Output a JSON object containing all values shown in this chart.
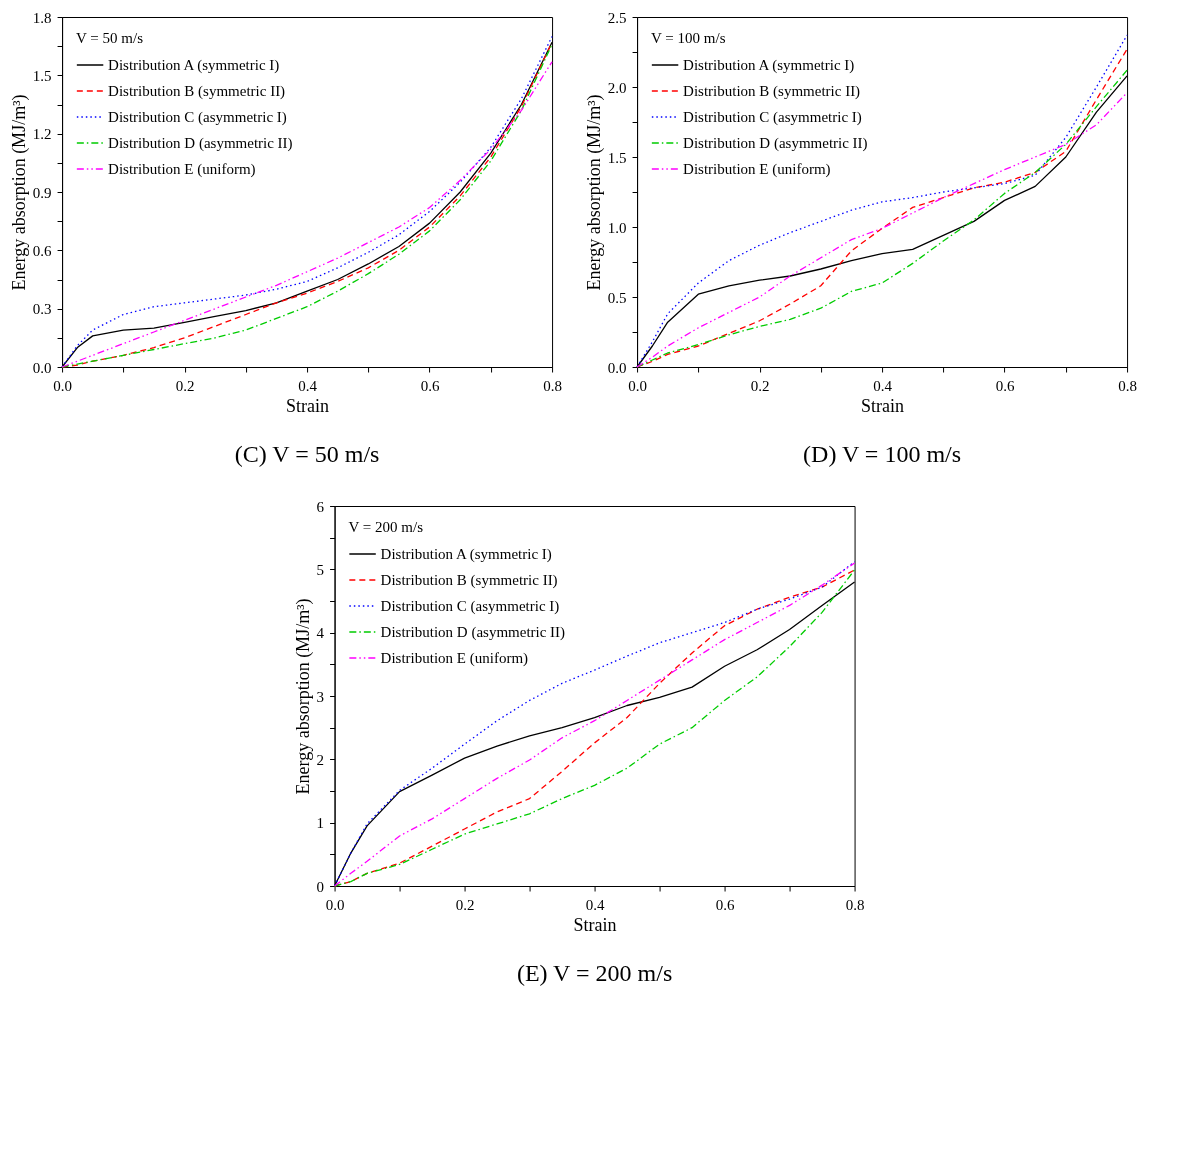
{
  "chart_data": [
    {
      "type": "line",
      "title": "(C) V = 50 m/s",
      "xlabel": "Strain",
      "ylabel": "Energy absorption (MJ/m³)",
      "legend_title": "V = 50 m/s",
      "legend": "top left",
      "grid": false,
      "x": [
        0,
        0.025,
        0.05,
        0.1,
        0.15,
        0.2,
        0.25,
        0.3,
        0.35,
        0.4,
        0.45,
        0.5,
        0.55,
        0.6,
        0.65,
        0.7,
        0.75,
        0.8
      ],
      "xlim": [
        0,
        0.8
      ],
      "xticks": [
        {
          "value": 0,
          "label": "0.0"
        },
        {
          "value": 0.1,
          "label": null
        },
        0.2,
        {
          "value": 0.3,
          "label": null
        },
        0.4,
        {
          "value": 0.5,
          "label": null
        },
        0.6,
        {
          "value": 0.7,
          "label": null
        },
        0.8
      ],
      "ylim": [
        0,
        1.8
      ],
      "yticks": [
        {
          "value": 0,
          "label": "0.0"
        },
        {
          "value": 0.15,
          "label": null
        },
        0.3,
        {
          "value": 0.45,
          "label": null
        },
        0.6,
        {
          "value": 0.75,
          "label": null
        },
        0.9,
        {
          "value": 1.05,
          "label": null
        },
        1.2,
        {
          "value": 1.35,
          "label": null
        },
        1.5,
        {
          "value": 1.65,
          "label": null
        },
        1.8
      ],
      "series": [
        {
          "name": "Distribution A (symmetric I)",
          "color": "#000000",
          "line_style": "solid",
          "values": [
            0,
            0.1,
            0.16,
            0.19,
            0.2,
            0.23,
            0.26,
            0.29,
            0.33,
            0.39,
            0.45,
            0.53,
            0.62,
            0.74,
            0.9,
            1.1,
            1.35,
            1.67
          ]
        },
        {
          "name": "Distribution B (symmetric II)",
          "color": "#ff0000",
          "line_style": "dashed",
          "values": [
            0,
            0.01,
            0.03,
            0.06,
            0.1,
            0.15,
            0.21,
            0.27,
            0.33,
            0.38,
            0.44,
            0.51,
            0.6,
            0.72,
            0.88,
            1.08,
            1.34,
            1.67
          ]
        },
        {
          "name": "Distribution C (asymmetric I)",
          "color": "#0000ff",
          "line_style": "dotted",
          "values": [
            0,
            0.11,
            0.19,
            0.27,
            0.31,
            0.33,
            0.35,
            0.37,
            0.4,
            0.44,
            0.51,
            0.59,
            0.68,
            0.8,
            0.95,
            1.13,
            1.38,
            1.7
          ]
        },
        {
          "name": "Distribution D (asymmetric II)",
          "color": "#00cc00",
          "line_style": "dashdot",
          "values": [
            0,
            0.015,
            0.03,
            0.06,
            0.09,
            0.12,
            0.15,
            0.19,
            0.25,
            0.31,
            0.39,
            0.48,
            0.58,
            0.7,
            0.86,
            1.06,
            1.32,
            1.66
          ]
        },
        {
          "name": "Distribution E (uniform)",
          "color": "#ff00ff",
          "line_style": "dashdotdot",
          "values": [
            0,
            0.03,
            0.06,
            0.12,
            0.18,
            0.24,
            0.3,
            0.36,
            0.42,
            0.49,
            0.56,
            0.64,
            0.72,
            0.82,
            0.96,
            1.12,
            1.32,
            1.57
          ]
        }
      ]
    },
    {
      "type": "line",
      "title": "(D) V = 100 m/s",
      "xlabel": "Strain",
      "ylabel": "Energy absorption (MJ/m³)",
      "legend_title": "V = 100 m/s",
      "legend": "top left",
      "grid": false,
      "x": [
        0,
        0.025,
        0.05,
        0.1,
        0.15,
        0.2,
        0.25,
        0.3,
        0.35,
        0.4,
        0.45,
        0.5,
        0.55,
        0.6,
        0.65,
        0.7,
        0.75,
        0.8
      ],
      "xlim": [
        0,
        0.8
      ],
      "xticks": [
        {
          "value": 0,
          "label": "0.0"
        },
        {
          "value": 0.1,
          "label": null
        },
        0.2,
        {
          "value": 0.3,
          "label": null
        },
        0.4,
        {
          "value": 0.5,
          "label": null
        },
        0.6,
        {
          "value": 0.7,
          "label": null
        },
        0.8
      ],
      "ylim": [
        0,
        2.5
      ],
      "yticks": [
        {
          "value": 0,
          "label": "0.0"
        },
        {
          "value": 0.25,
          "label": null
        },
        0.5,
        {
          "value": 0.75,
          "label": null
        },
        {
          "value": 1,
          "label": "1.0"
        },
        {
          "value": 1.25,
          "label": null
        },
        1.5,
        {
          "value": 1.75,
          "label": null
        },
        {
          "value": 2,
          "label": "2.0"
        },
        {
          "value": 2.25,
          "label": null
        },
        2.5
      ],
      "series": [
        {
          "name": "Distribution A (symmetric I)",
          "color": "#000000",
          "line_style": "solid",
          "values": [
            0,
            0.15,
            0.32,
            0.52,
            0.58,
            0.62,
            0.65,
            0.7,
            0.76,
            0.81,
            0.84,
            0.94,
            1.04,
            1.19,
            1.29,
            1.5,
            1.82,
            2.08
          ]
        },
        {
          "name": "Distribution B (symmetric II)",
          "color": "#ff0000",
          "line_style": "dashed",
          "values": [
            0,
            0.04,
            0.09,
            0.15,
            0.24,
            0.33,
            0.45,
            0.58,
            0.83,
            0.99,
            1.14,
            1.21,
            1.28,
            1.32,
            1.39,
            1.54,
            1.91,
            2.27
          ]
        },
        {
          "name": "Distribution C (asymmetric I)",
          "color": "#0000ff",
          "line_style": "dotted",
          "values": [
            0,
            0.18,
            0.38,
            0.6,
            0.76,
            0.87,
            0.96,
            1.04,
            1.12,
            1.18,
            1.21,
            1.25,
            1.28,
            1.31,
            1.37,
            1.64,
            2.0,
            2.37
          ]
        },
        {
          "name": "Distribution D (asymmetric II)",
          "color": "#00cc00",
          "line_style": "dashdot",
          "values": [
            0,
            0.05,
            0.1,
            0.16,
            0.23,
            0.29,
            0.34,
            0.42,
            0.54,
            0.6,
            0.74,
            0.9,
            1.05,
            1.24,
            1.39,
            1.59,
            1.86,
            2.12
          ]
        },
        {
          "name": "Distribution E (uniform)",
          "color": "#ff00ff",
          "line_style": "dashdotdot",
          "values": [
            0,
            0.07,
            0.15,
            0.28,
            0.39,
            0.5,
            0.65,
            0.78,
            0.91,
            0.99,
            1.1,
            1.21,
            1.31,
            1.41,
            1.5,
            1.59,
            1.73,
            1.96
          ]
        }
      ]
    },
    {
      "type": "line",
      "title": "(E) V = 200 m/s",
      "xlabel": "Strain",
      "ylabel": "Energy absorption (MJ/m³)",
      "legend_title": "V = 200 m/s",
      "legend": "top left",
      "grid": false,
      "x": [
        0,
        0.025,
        0.05,
        0.1,
        0.15,
        0.2,
        0.25,
        0.3,
        0.35,
        0.4,
        0.45,
        0.5,
        0.55,
        0.6,
        0.65,
        0.7,
        0.75,
        0.8
      ],
      "xlim": [
        0,
        0.8
      ],
      "xticks": [
        {
          "value": 0,
          "label": "0.0"
        },
        {
          "value": 0.1,
          "label": null
        },
        0.2,
        {
          "value": 0.3,
          "label": null
        },
        0.4,
        {
          "value": 0.5,
          "label": null
        },
        0.6,
        {
          "value": 0.7,
          "label": null
        },
        0.8
      ],
      "ylim": [
        0,
        6
      ],
      "yticks": [
        0,
        {
          "value": 0.5,
          "label": null
        },
        1,
        {
          "value": 1.5,
          "label": null
        },
        2,
        {
          "value": 2.5,
          "label": null
        },
        3,
        {
          "value": 3.5,
          "label": null
        },
        4,
        {
          "value": 4.5,
          "label": null
        },
        5,
        {
          "value": 5.5,
          "label": null
        },
        6
      ],
      "series": [
        {
          "name": "Distribution A (symmetric I)",
          "color": "#000000",
          "line_style": "solid",
          "values": [
            0,
            0.52,
            0.95,
            1.49,
            1.75,
            2.02,
            2.21,
            2.37,
            2.5,
            2.66,
            2.85,
            2.98,
            3.14,
            3.47,
            3.73,
            4.05,
            4.43,
            4.8
          ]
        },
        {
          "name": "Distribution B (symmetric II)",
          "color": "#ff0000",
          "line_style": "dashed",
          "values": [
            0,
            0.07,
            0.2,
            0.36,
            0.63,
            0.9,
            1.17,
            1.38,
            1.81,
            2.26,
            2.66,
            3.2,
            3.68,
            4.11,
            4.37,
            4.56,
            4.72,
            4.99
          ]
        },
        {
          "name": "Distribution C (asymmetric I)",
          "color": "#0000ff",
          "line_style": "dotted",
          "values": [
            0,
            0.52,
            0.98,
            1.51,
            1.86,
            2.24,
            2.61,
            2.93,
            3.2,
            3.41,
            3.63,
            3.84,
            4.0,
            4.16,
            4.37,
            4.53,
            4.72,
            5.12
          ]
        },
        {
          "name": "Distribution D (asymmetric II)",
          "color": "#00cc00",
          "line_style": "dashdot",
          "values": [
            0,
            0.07,
            0.2,
            0.34,
            0.58,
            0.82,
            0.98,
            1.14,
            1.38,
            1.59,
            1.86,
            2.24,
            2.5,
            2.93,
            3.3,
            3.78,
            4.32,
            4.99
          ]
        },
        {
          "name": "Distribution E (uniform)",
          "color": "#ff00ff",
          "line_style": "dashdotdot",
          "values": [
            0,
            0.2,
            0.39,
            0.79,
            1.06,
            1.38,
            1.7,
            1.99,
            2.34,
            2.61,
            2.93,
            3.25,
            3.57,
            3.89,
            4.16,
            4.43,
            4.75,
            5.1
          ]
        }
      ]
    }
  ]
}
